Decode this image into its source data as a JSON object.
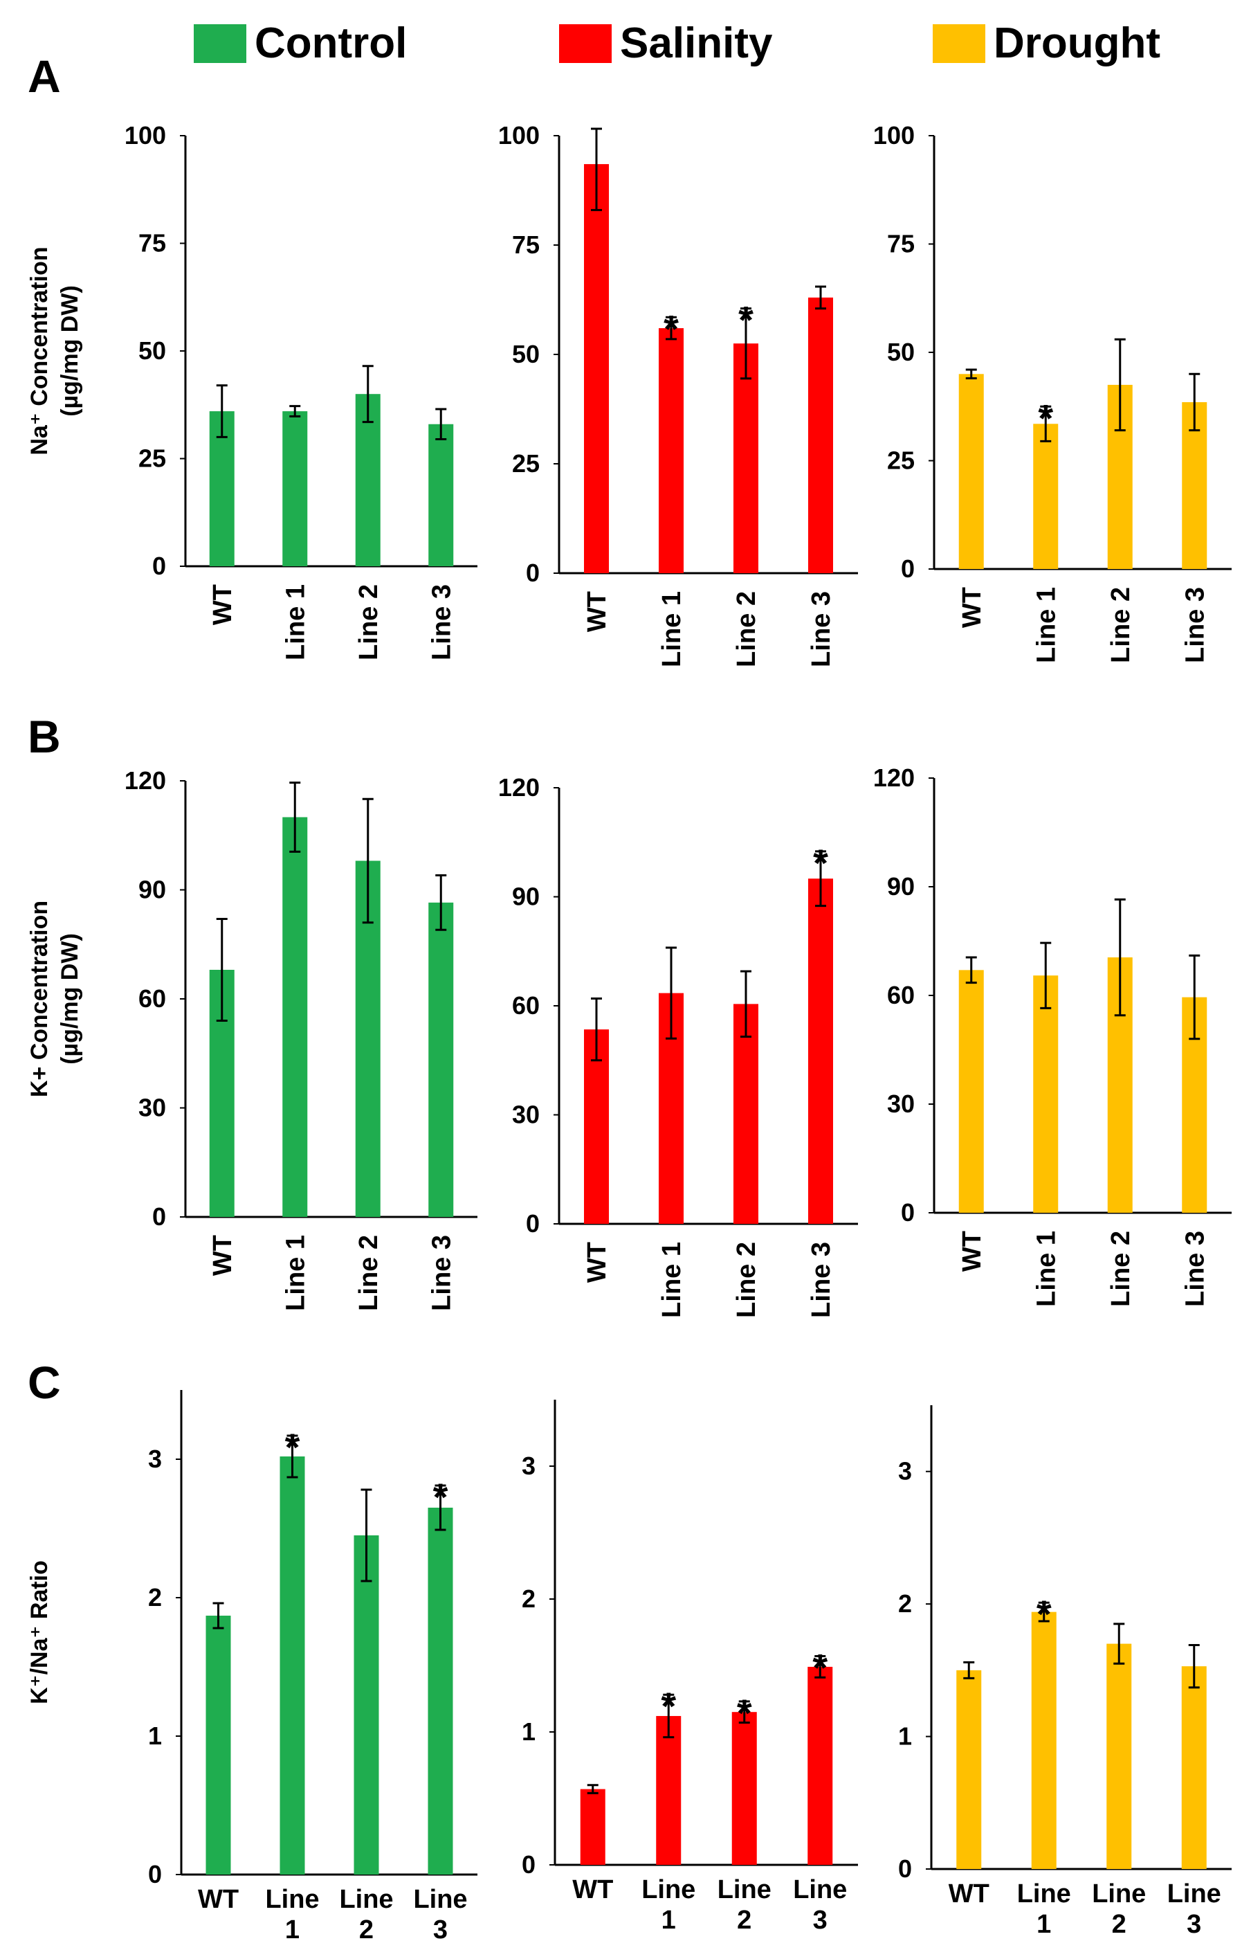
{
  "legend": [
    {
      "label": "Control",
      "color": "#1fad4f"
    },
    {
      "label": "Salinity",
      "color": "#ff0000"
    },
    {
      "label": "Drought",
      "color": "#ffc000"
    }
  ],
  "chart_data": [
    {
      "panel": "A",
      "condition": "Control",
      "type": "bar",
      "color": "#1fad4f",
      "ylabel": [
        "Na⁺ Concentration",
        "(µg/mg DW)"
      ],
      "ylim": [
        0,
        100
      ],
      "yticks": [
        0,
        25,
        50,
        75,
        100
      ],
      "categories": [
        [
          "WT"
        ],
        [
          "Line 1"
        ],
        [
          "Line 2"
        ],
        [
          "Line 3"
        ]
      ],
      "xlabel_rotated": true,
      "values": [
        36,
        36,
        40,
        33
      ],
      "errors": [
        6,
        1.2,
        6.5,
        3.5
      ],
      "significant": [
        false,
        false,
        false,
        false
      ]
    },
    {
      "panel": "A",
      "condition": "Salinity",
      "type": "bar",
      "color": "#ff0000",
      "ylim": [
        0,
        100
      ],
      "yticks": [
        0,
        25,
        50,
        75,
        100
      ],
      "categories": [
        [
          "WT"
        ],
        [
          "Line 1"
        ],
        [
          "Line 2"
        ],
        [
          "Line 3"
        ]
      ],
      "xlabel_rotated": true,
      "values": [
        93.5,
        56,
        52.5,
        63
      ],
      "errors": [
        10.5,
        2.5,
        8,
        2.5
      ],
      "significant": [
        false,
        true,
        true,
        false
      ]
    },
    {
      "panel": "A",
      "condition": "Drought",
      "type": "bar",
      "color": "#ffc000",
      "ylim": [
        0,
        100
      ],
      "yticks": [
        0,
        25,
        50,
        75,
        100
      ],
      "categories": [
        [
          "WT"
        ],
        [
          "Line 1"
        ],
        [
          "Line 2"
        ],
        [
          "Line 3"
        ]
      ],
      "xlabel_rotated": true,
      "values": [
        45,
        33.5,
        42.5,
        38.5
      ],
      "errors": [
        1,
        4,
        10.5,
        6.5
      ],
      "significant": [
        false,
        true,
        false,
        false
      ]
    },
    {
      "panel": "B",
      "condition": "Control",
      "type": "bar",
      "color": "#1fad4f",
      "ylabel": [
        "K+ Concentration",
        "(µg/mg DW)"
      ],
      "ylim": [
        0,
        120
      ],
      "yticks": [
        0,
        30,
        60,
        90,
        120
      ],
      "categories": [
        [
          "WT"
        ],
        [
          "Line 1"
        ],
        [
          "Line 2"
        ],
        [
          "Line 3"
        ]
      ],
      "xlabel_rotated": true,
      "values": [
        68,
        110,
        98,
        86.5
      ],
      "errors": [
        14,
        9.5,
        17,
        7.5
      ],
      "significant": [
        false,
        false,
        false,
        false
      ]
    },
    {
      "panel": "B",
      "condition": "Salinity",
      "type": "bar",
      "color": "#ff0000",
      "ylim": [
        0,
        120
      ],
      "yticks": [
        0,
        30,
        60,
        90,
        120
      ],
      "categories": [
        [
          "WT"
        ],
        [
          "Line 1"
        ],
        [
          "Line 2"
        ],
        [
          "Line 3"
        ]
      ],
      "xlabel_rotated": true,
      "values": [
        53.5,
        63.5,
        60.5,
        95
      ],
      "errors": [
        8.5,
        12.5,
        9,
        7.5
      ],
      "significant": [
        false,
        false,
        false,
        true
      ]
    },
    {
      "panel": "B",
      "condition": "Drought",
      "type": "bar",
      "color": "#ffc000",
      "ylim": [
        0,
        120
      ],
      "yticks": [
        0,
        30,
        60,
        90,
        120
      ],
      "categories": [
        [
          "WT"
        ],
        [
          "Line 1"
        ],
        [
          "Line 2"
        ],
        [
          "Line 3"
        ]
      ],
      "xlabel_rotated": true,
      "values": [
        67,
        65.5,
        70.5,
        59.5
      ],
      "errors": [
        3.5,
        9,
        16,
        11.5
      ],
      "significant": [
        false,
        false,
        false,
        false
      ]
    },
    {
      "panel": "C",
      "condition": "Control",
      "type": "bar",
      "color": "#1fad4f",
      "ylabel": [
        "K⁺/Na⁺ Ratio"
      ],
      "ylim": [
        0,
        3.5
      ],
      "yticks": [
        0,
        1,
        2,
        3
      ],
      "categories": [
        [
          "WT"
        ],
        [
          "Line",
          "1"
        ],
        [
          "Line",
          "2"
        ],
        [
          "Line",
          "3"
        ]
      ],
      "xlabel_rotated": false,
      "values": [
        1.87,
        3.02,
        2.45,
        2.65
      ],
      "errors": [
        0.09,
        0.15,
        0.33,
        0.16
      ],
      "significant": [
        false,
        true,
        false,
        true
      ]
    },
    {
      "panel": "C",
      "condition": "Salinity",
      "type": "bar",
      "color": "#ff0000",
      "ylim": [
        0,
        3.5
      ],
      "yticks": [
        0,
        1,
        2,
        3
      ],
      "categories": [
        [
          "WT"
        ],
        [
          "Line",
          "1"
        ],
        [
          "Line",
          "2"
        ],
        [
          "Line",
          "3"
        ]
      ],
      "xlabel_rotated": false,
      "values": [
        0.57,
        1.12,
        1.15,
        1.49
      ],
      "errors": [
        0.03,
        0.16,
        0.08,
        0.08
      ],
      "significant": [
        false,
        true,
        true,
        true
      ]
    },
    {
      "panel": "C",
      "condition": "Drought",
      "type": "bar",
      "color": "#ffc000",
      "ylim": [
        0,
        3.5
      ],
      "yticks": [
        0,
        1,
        2,
        3
      ],
      "categories": [
        [
          "WT"
        ],
        [
          "Line",
          "1"
        ],
        [
          "Line",
          "2"
        ],
        [
          "Line",
          "3"
        ]
      ],
      "xlabel_rotated": false,
      "values": [
        1.5,
        1.94,
        1.7,
        1.53
      ],
      "errors": [
        0.06,
        0.07,
        0.15,
        0.16
      ],
      "significant": [
        false,
        true,
        false,
        false
      ]
    }
  ],
  "significance_marker": "*"
}
